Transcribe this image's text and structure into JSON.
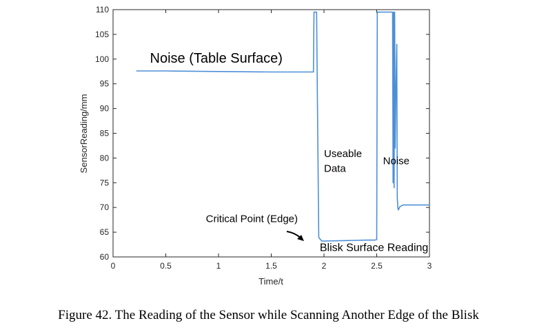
{
  "chart_data": {
    "type": "line",
    "xlabel": "Time/t",
    "ylabel": "SensorReading/mm",
    "xlim": [
      0,
      3
    ],
    "ylim": [
      60,
      110
    ],
    "x_ticks": [
      0,
      0.5,
      1,
      1.5,
      2,
      2.5,
      3
    ],
    "x_tick_labels": [
      "0",
      "0.5",
      "1",
      "1.5",
      "2",
      "2.5",
      "3"
    ],
    "y_ticks": [
      60,
      65,
      70,
      75,
      80,
      85,
      90,
      95,
      100,
      105,
      110
    ],
    "y_tick_labels": [
      "60",
      "65",
      "70",
      "75",
      "80",
      "85",
      "90",
      "95",
      "100",
      "105",
      "110"
    ],
    "grid": false,
    "line_color": "#4d8fd6",
    "series": [
      {
        "x": [
          0.22,
          0.5,
          1.0,
          1.5,
          1.88,
          1.9,
          1.905,
          1.93,
          1.935,
          1.95,
          1.955,
          1.98,
          2.2,
          2.4,
          2.48,
          2.5,
          2.505,
          2.65,
          2.655,
          2.66,
          2.665,
          2.67,
          2.675,
          2.68,
          2.685,
          2.69,
          2.695,
          2.7,
          2.705,
          2.72,
          2.75,
          3.0
        ],
        "y": [
          97.6,
          97.6,
          97.5,
          97.4,
          97.4,
          97.4,
          109.5,
          109.5,
          97.0,
          64.0,
          63.8,
          63.2,
          63.3,
          63.4,
          63.4,
          63.5,
          109.5,
          109.5,
          75.0,
          109.5,
          74.0,
          109.5,
          82.0,
          90.0,
          97.0,
          103.0,
          72.0,
          70.0,
          69.5,
          70.2,
          70.5,
          70.5
        ]
      }
    ],
    "annotations": [
      {
        "text": "Noise (Table Surface)",
        "x": 0.35,
        "y": 99.3
      },
      {
        "text": "Useable",
        "x": 2.0,
        "y": 80.2
      },
      {
        "text": "Data",
        "x": 2.0,
        "y": 77.2
      },
      {
        "text": "Noise",
        "x": 2.56,
        "y": 78.7
      },
      {
        "text": "Critical Point (Edge)",
        "x": 0.88,
        "y": 67.0
      },
      {
        "text": "Blisk Surface Reading",
        "x": 1.96,
        "y": 61.2
      }
    ]
  },
  "caption": "Figure 42. The Reading of the Sensor while Scanning Another Edge of the Blisk"
}
